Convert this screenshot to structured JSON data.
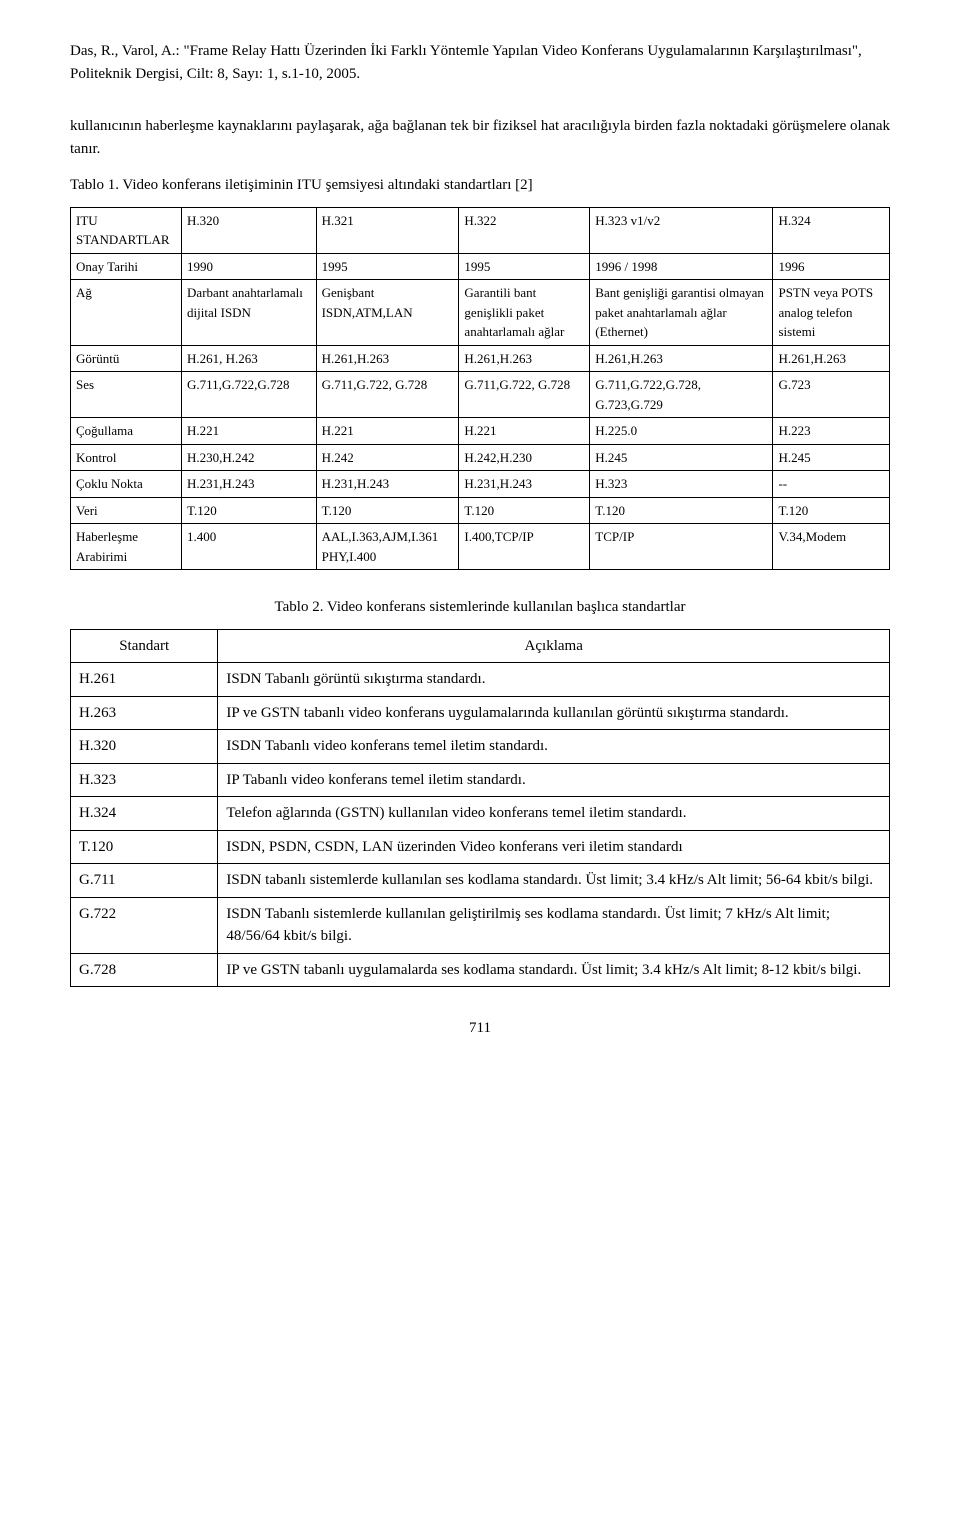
{
  "citation": "Das, R., Varol, A.: \"Frame Relay Hattı Üzerinden İki Farklı Yöntemle Yapılan Video Konferans Uygulamalarının Karşılaştırılması\", Politeknik Dergisi, Cilt: 8, Sayı: 1, s.1-10, 2005.",
  "intro_paragraph": "kullanıcının haberleşme kaynaklarını paylaşarak, ağa bağlanan tek bir fiziksel hat aracılığıyla birden fazla noktadaki görüşmelere olanak tanır.",
  "table1": {
    "caption": "Tablo 1. Video konferans iletişiminin ITU şemsiyesi altındaki standartları [2]",
    "header_left": "ITU STANDARTLAR",
    "cols": [
      "H.320",
      "H.321",
      "H.322",
      "H.323 v1/v2",
      "H.324"
    ],
    "rows": [
      {
        "label": "Onay Tarihi",
        "cells": [
          "1990",
          "1995",
          "1995",
          "1996 / 1998",
          "1996"
        ]
      },
      {
        "label": "Ağ",
        "cells": [
          "Darbant anahtarlamalı dijital ISDN",
          "Genişbant ISDN,ATM,LAN",
          "Garantili bant genişlikli paket anahtarlamalı ağlar",
          "Bant genişliği garantisi olmayan paket anahtarlamalı ağlar (Ethernet)",
          "PSTN veya POTS analog telefon sistemi"
        ]
      },
      {
        "label": "Görüntü",
        "cells": [
          "H.261, H.263",
          "H.261,H.263",
          "H.261,H.263",
          "H.261,H.263",
          "H.261,H.263"
        ]
      },
      {
        "label": "Ses",
        "cells": [
          "G.711,G.722,G.728",
          "G.711,G.722, G.728",
          "G.711,G.722, G.728",
          "G.711,G.722,G.728, G.723,G.729",
          "G.723"
        ]
      },
      {
        "label": "Çoğullama",
        "cells": [
          "H.221",
          "H.221",
          "H.221",
          "H.225.0",
          "H.223"
        ]
      },
      {
        "label": "Kontrol",
        "cells": [
          "H.230,H.242",
          "H.242",
          "H.242,H.230",
          "H.245",
          "H.245"
        ]
      },
      {
        "label": "Çoklu Nokta",
        "cells": [
          "H.231,H.243",
          "H.231,H.243",
          "H.231,H.243",
          "H.323",
          "--"
        ]
      },
      {
        "label": "Veri",
        "cells": [
          "T.120",
          "T.120",
          "T.120",
          "T.120",
          "T.120"
        ]
      },
      {
        "label": "Haberleşme Arabirimi",
        "cells": [
          "1.400",
          "AAL,I.363,AJM,I.361 PHY,I.400",
          "I.400,TCP/IP",
          "TCP/IP",
          "V.34,Modem"
        ]
      }
    ],
    "border_color": "#000000",
    "fontsize": 13
  },
  "table2": {
    "caption": "Tablo 2. Video konferans sistemlerinde kullanılan başlıca standartlar",
    "header": [
      "Standart",
      "Açıklama"
    ],
    "rows": [
      [
        "H.261",
        "ISDN Tabanlı görüntü sıkıştırma standardı."
      ],
      [
        "H.263",
        "IP ve GSTN tabanlı video konferans uygulamalarında kullanılan görüntü sıkıştırma standardı."
      ],
      [
        "H.320",
        "ISDN Tabanlı video konferans temel iletim standardı."
      ],
      [
        "H.323",
        "IP Tabanlı video konferans temel iletim standardı."
      ],
      [
        "H.324",
        "Telefon ağlarında (GSTN) kullanılan video konferans temel iletim standardı."
      ],
      [
        "T.120",
        "ISDN, PSDN, CSDN, LAN üzerinden Video konferans veri iletim standardı"
      ],
      [
        "G.711",
        "ISDN tabanlı sistemlerde kullanılan ses kodlama standardı. Üst limit; 3.4 kHz/s Alt limit; 56-64 kbit/s bilgi."
      ],
      [
        "G.722",
        "ISDN Tabanlı sistemlerde kullanılan geliştirilmiş ses kodlama standardı. Üst limit; 7 kHz/s Alt limit; 48/56/64 kbit/s bilgi."
      ],
      [
        "G.728",
        "IP ve GSTN tabanlı uygulamalarda ses kodlama standardı. Üst limit; 3.4 kHz/s Alt limit; 8-12 kbit/s bilgi."
      ]
    ],
    "border_color": "#000000",
    "fontsize": 15
  },
  "page_number": "711"
}
